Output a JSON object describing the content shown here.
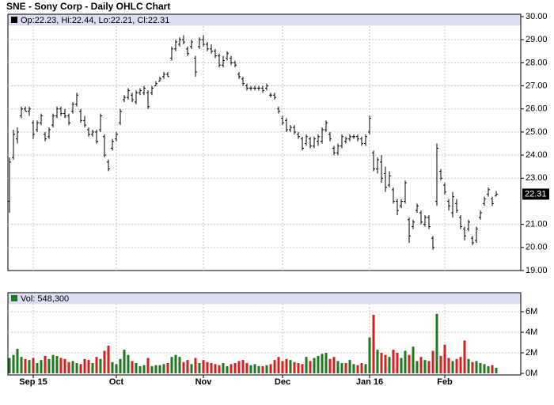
{
  "chart_data": {
    "type": "ohlc",
    "title": "SNE - Sony Corp - Daily OHLC Chart",
    "price_legend": "Op:22.23, Hi:22.44, Lo:22.21, Cl:22.31",
    "volume_legend": "Vol: 548,300",
    "categories": [
      null,
      null,
      null,
      null,
      null,
      null,
      "Sep 15",
      null,
      null,
      null,
      null,
      null,
      null,
      null,
      null,
      null,
      null,
      null,
      null,
      null,
      null,
      null,
      null,
      null,
      null,
      null,
      null,
      "Oct",
      null,
      null,
      null,
      null,
      null,
      null,
      null,
      null,
      null,
      null,
      null,
      null,
      null,
      null,
      null,
      null,
      null,
      null,
      null,
      null,
      null,
      "Nov",
      null,
      null,
      null,
      null,
      null,
      null,
      null,
      null,
      null,
      null,
      null,
      null,
      null,
      null,
      null,
      null,
      null,
      null,
      null,
      "Dec",
      null,
      null,
      null,
      null,
      null,
      null,
      null,
      null,
      null,
      null,
      null,
      null,
      null,
      null,
      null,
      null,
      null,
      null,
      null,
      null,
      null,
      "Jan 16",
      null,
      null,
      null,
      null,
      null,
      null,
      null,
      null,
      null,
      null,
      null,
      null,
      null,
      null,
      null,
      null,
      null,
      null,
      "Feb",
      null,
      null,
      null,
      null,
      null,
      null,
      null,
      null,
      null,
      null,
      null,
      null,
      null
    ],
    "open": [
      22.0,
      23.9,
      24.7,
      25.7,
      26.0,
      25.9,
      25.4,
      25.1,
      25.4,
      24.9,
      24.8,
      25.3,
      25.7,
      26.0,
      25.8,
      25.7,
      25.9,
      26.2,
      25.9,
      25.5,
      25.1,
      24.9,
      25.0,
      25.1,
      24.8,
      23.7,
      24.3,
      24.7,
      25.4,
      26.4,
      26.5,
      26.6,
      26.3,
      26.7,
      26.7,
      26.7,
      26.7,
      27.0,
      27.2,
      27.4,
      27.5,
      28.2,
      28.6,
      28.8,
      29.0,
      28.6,
      28.7,
      28.2,
      28.7,
      29.0,
      28.8,
      28.6,
      28.5,
      28.3,
      27.9,
      28.2,
      28.2,
      28.0,
      27.5,
      27.3,
      27.0,
      26.9,
      26.9,
      26.9,
      26.9,
      26.9,
      26.6,
      26.6,
      26.0,
      25.6,
      25.5,
      25.1,
      25.2,
      24.9,
      24.7,
      24.5,
      24.7,
      24.4,
      24.6,
      24.6,
      25.1,
      24.9,
      24.3,
      24.1,
      24.4,
      24.6,
      24.7,
      24.8,
      24.8,
      24.7,
      24.5,
      25.0,
      24.1,
      23.4,
      23.7,
      23.2,
      22.7,
      22.5,
      22.0,
      21.8,
      22.0,
      21.2,
      20.9,
      21.6,
      21.5,
      21.0,
      21.3,
      20.4,
      22.0,
      23.3,
      22.7,
      22.0,
      21.5,
      21.9,
      21.3,
      20.8,
      20.8,
      20.4,
      20.3,
      21.3,
      21.9,
      22.3,
      22.1,
      22.23
    ],
    "high": [
      23.9,
      25.1,
      25.2,
      26.1,
      26.1,
      26.1,
      25.5,
      25.5,
      25.8,
      25.0,
      25.2,
      25.8,
      26.1,
      26.1,
      26.0,
      25.8,
      26.3,
      26.7,
      26.0,
      25.7,
      25.2,
      25.1,
      25.1,
      25.8,
      24.9,
      23.8,
      24.7,
      25.0,
      26.0,
      26.6,
      26.9,
      26.7,
      26.8,
      26.9,
      27.0,
      26.8,
      27.0,
      27.2,
      27.4,
      27.6,
      27.6,
      28.7,
      29.0,
      29.1,
      29.2,
      28.7,
      29.0,
      28.3,
      29.1,
      29.2,
      28.9,
      28.8,
      28.6,
      28.4,
      28.3,
      28.5,
      28.3,
      28.1,
      27.6,
      27.4,
      27.1,
      27.0,
      27.0,
      27.0,
      27.0,
      27.1,
      26.7,
      26.7,
      26.1,
      25.7,
      25.6,
      25.3,
      25.3,
      25.0,
      24.8,
      24.9,
      24.8,
      24.8,
      24.9,
      25.2,
      25.5,
      25.0,
      24.4,
      24.5,
      24.9,
      24.8,
      24.9,
      24.9,
      24.9,
      24.8,
      24.9,
      25.7,
      24.2,
      23.9,
      24.0,
      23.5,
      23.3,
      22.6,
      22.1,
      22.1,
      22.9,
      21.3,
      21.2,
      21.9,
      21.6,
      21.4,
      21.4,
      20.5,
      24.5,
      23.4,
      22.8,
      22.1,
      22.4,
      22.1,
      21.4,
      20.9,
      21.2,
      20.5,
      20.9,
      21.6,
      22.2,
      22.6,
      22.2,
      22.44
    ],
    "low": [
      21.5,
      23.8,
      24.5,
      25.6,
      25.9,
      25.7,
      24.7,
      25.0,
      25.3,
      24.6,
      24.7,
      25.2,
      25.6,
      25.7,
      25.6,
      25.3,
      25.8,
      26.1,
      25.4,
      25.2,
      24.8,
      24.8,
      24.5,
      25.0,
      23.9,
      23.3,
      24.2,
      24.6,
      25.3,
      26.3,
      26.4,
      26.3,
      26.2,
      26.6,
      26.6,
      26.0,
      26.6,
      27.0,
      27.2,
      27.3,
      27.4,
      28.1,
      28.5,
      28.7,
      28.8,
      28.3,
      28.6,
      27.4,
      28.6,
      28.7,
      28.5,
      28.4,
      28.2,
      27.8,
      27.8,
      28.1,
      27.9,
      27.8,
      27.3,
      27.0,
      26.8,
      26.8,
      26.8,
      26.8,
      26.7,
      26.8,
      26.5,
      26.4,
      25.8,
      25.3,
      25.0,
      25.0,
      24.9,
      24.7,
      24.2,
      24.4,
      24.3,
      24.3,
      24.4,
      24.5,
      25.0,
      24.6,
      24.0,
      24.0,
      24.3,
      24.5,
      24.6,
      24.7,
      24.6,
      24.4,
      24.4,
      24.9,
      23.3,
      23.2,
      22.8,
      22.4,
      22.6,
      21.9,
      21.4,
      21.7,
      21.9,
      20.2,
      20.8,
      21.5,
      21.0,
      20.9,
      20.8,
      19.9,
      21.8,
      22.9,
      22.3,
      21.6,
      21.3,
      21.5,
      20.8,
      20.3,
      20.7,
      20.1,
      20.2,
      21.2,
      21.8,
      22.2,
      21.8,
      22.21
    ],
    "close": [
      23.7,
      24.9,
      25.0,
      26.0,
      25.9,
      26.0,
      24.9,
      25.4,
      25.7,
      24.7,
      25.1,
      25.7,
      26.0,
      25.8,
      25.7,
      25.4,
      26.2,
      26.6,
      25.5,
      25.3,
      24.9,
      25.0,
      24.6,
      25.7,
      24.0,
      23.4,
      24.6,
      24.9,
      25.9,
      26.5,
      26.8,
      26.4,
      26.7,
      26.8,
      26.9,
      26.1,
      26.9,
      27.1,
      27.3,
      27.5,
      27.4,
      28.6,
      28.9,
      29.0,
      28.9,
      28.4,
      28.9,
      27.6,
      29.0,
      28.8,
      28.6,
      28.5,
      28.3,
      27.9,
      28.1,
      28.4,
      28.0,
      27.9,
      27.4,
      27.1,
      26.9,
      26.9,
      26.9,
      26.9,
      26.8,
      27.0,
      26.6,
      26.5,
      25.9,
      25.4,
      25.1,
      25.2,
      25.0,
      24.8,
      24.3,
      24.8,
      24.4,
      24.7,
      24.8,
      25.1,
      25.4,
      24.7,
      24.1,
      24.4,
      24.8,
      24.7,
      24.8,
      24.8,
      24.7,
      24.5,
      24.8,
      25.6,
      23.4,
      23.8,
      23.0,
      22.6,
      23.1,
      22.0,
      21.6,
      22.0,
      22.8,
      20.5,
      21.1,
      21.8,
      21.1,
      21.3,
      20.9,
      20.0,
      24.3,
      23.0,
      22.4,
      21.8,
      22.2,
      21.6,
      20.9,
      20.5,
      21.1,
      20.2,
      20.8,
      21.5,
      22.1,
      22.5,
      21.9,
      22.31
    ],
    "volume": [
      1.5,
      1.8,
      2.4,
      1.6,
      1.4,
      1.3,
      1.5,
      1.0,
      1.3,
      1.7,
      1.4,
      1.8,
      1.7,
      1.5,
      1.4,
      1.1,
      1.2,
      1.0,
      0.9,
      1.4,
      1.3,
      1.0,
      1.6,
      1.4,
      2.2,
      2.7,
      1.1,
      0.9,
      1.4,
      2.3,
      1.8,
      1.2,
      1.0,
      0.7,
      0.8,
      1.5,
      0.7,
      0.8,
      0.8,
      0.9,
      1.0,
      1.6,
      1.8,
      1.6,
      1.1,
      1.3,
      0.9,
      1.5,
      1.0,
      1.3,
      1.1,
      1.0,
      0.9,
      0.8,
      1.0,
      0.7,
      0.9,
      1.0,
      1.2,
      1.3,
      1.0,
      0.8,
      0.9,
      0.7,
      0.7,
      0.8,
      0.9,
      1.3,
      1.6,
      1.2,
      1.4,
      1.3,
      1.1,
      1.0,
      0.9,
      1.6,
      1.2,
      1.5,
      1.7,
      1.9,
      2.0,
      1.4,
      1.6,
      1.2,
      1.0,
      1.0,
      1.3,
      0.9,
      0.8,
      1.0,
      0.9,
      3.5,
      5.7,
      2.3,
      2.0,
      1.8,
      1.6,
      2.3,
      2.0,
      1.5,
      2.2,
      1.8,
      2.6,
      1.2,
      1.6,
      1.3,
      1.2,
      2.2,
      5.8,
      1.7,
      2.8,
      1.5,
      1.2,
      1.4,
      1.6,
      3.2,
      1.4,
      1.1,
      1.2,
      1.0,
      0.9,
      0.7,
      0.8,
      0.5483
    ],
    "bar_color": "#000000",
    "up_color": "#1e7a1e",
    "down_color": "#d42020",
    "ylim": [
      19,
      30
    ],
    "yticks": [
      {
        "value": 30,
        "label": "30.00"
      },
      {
        "value": 29,
        "label": "29.00"
      },
      {
        "value": 28,
        "label": "28.00"
      },
      {
        "value": 27,
        "label": "27.00"
      },
      {
        "value": 26,
        "label": "26.00"
      },
      {
        "value": 25,
        "label": "25.00"
      },
      {
        "value": 24,
        "label": "24.00"
      },
      {
        "value": 23,
        "label": "23.00"
      },
      {
        "value": 21,
        "label": "21.00"
      },
      {
        "value": 20,
        "label": "20.00"
      },
      {
        "value": 19,
        "label": "19.00"
      }
    ],
    "y2lim": [
      0,
      7.7
    ],
    "y2ticks": [
      {
        "value": 6,
        "label": "6M"
      },
      {
        "value": 4,
        "label": "4M"
      },
      {
        "value": 2,
        "label": "2M"
      },
      {
        "value": 0,
        "label": "0M"
      }
    ],
    "grid": true
  }
}
